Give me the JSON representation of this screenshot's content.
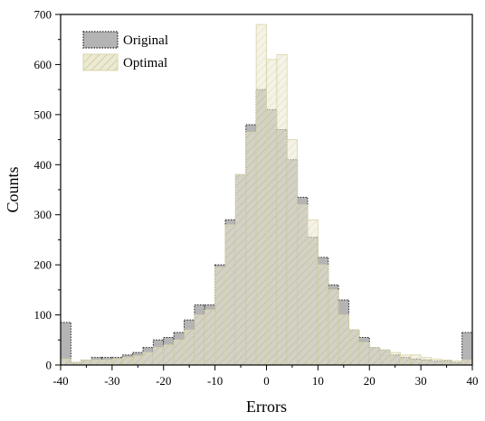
{
  "chart_data": {
    "type": "bar",
    "xlabel": "Errors",
    "ylabel": "Counts",
    "xlim": [
      -40,
      40
    ],
    "ylim": [
      0,
      700
    ],
    "bin_width": 2,
    "bin_starts": [
      -40,
      -38,
      -36,
      -34,
      -32,
      -30,
      -28,
      -26,
      -24,
      -22,
      -20,
      -18,
      -16,
      -14,
      -12,
      -10,
      -8,
      -6,
      -4,
      -2,
      0,
      2,
      4,
      6,
      8,
      10,
      12,
      14,
      16,
      18,
      20,
      22,
      24,
      26,
      28,
      30,
      32,
      34,
      36,
      38
    ],
    "x_ticks": [
      -40,
      -30,
      -20,
      -10,
      0,
      10,
      20,
      30,
      40
    ],
    "y_ticks": [
      0,
      100,
      200,
      300,
      400,
      500,
      600,
      700
    ],
    "legend_position": "top-left",
    "series": [
      {
        "name": "Original",
        "color": "#b4b4b4",
        "values": [
          85,
          5,
          10,
          15,
          15,
          15,
          20,
          25,
          35,
          50,
          55,
          65,
          90,
          120,
          120,
          200,
          290,
          380,
          480,
          550,
          510,
          470,
          410,
          335,
          255,
          215,
          160,
          130,
          70,
          55,
          35,
          30,
          20,
          15,
          12,
          10,
          8,
          8,
          5,
          65
        ]
      },
      {
        "name": "Optimal",
        "color": "#e8e4c8",
        "values": [
          12,
          5,
          10,
          10,
          10,
          12,
          15,
          18,
          25,
          35,
          40,
          50,
          70,
          100,
          110,
          195,
          280,
          380,
          465,
          680,
          610,
          620,
          450,
          320,
          290,
          200,
          150,
          100,
          70,
          45,
          35,
          30,
          25,
          20,
          20,
          15,
          12,
          10,
          8,
          10
        ]
      }
    ]
  }
}
